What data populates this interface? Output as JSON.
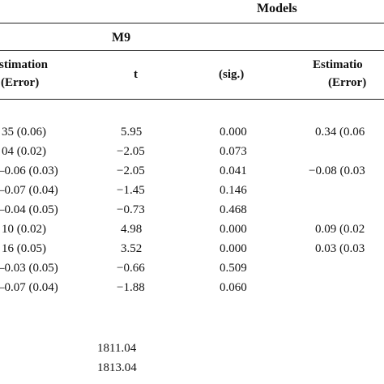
{
  "header": {
    "models": "Models",
    "m9": "M9"
  },
  "columns": {
    "estimation_left_line1": "stimation",
    "estimation_left_line2": "(Error)",
    "t": "t",
    "sig": "(sig.)",
    "estimation_right_line1": "Estimatio",
    "estimation_right_line2": "(Error)"
  },
  "rows": [
    {
      "est": "35 (0.06)",
      "t": "5.95",
      "sig": "0.000",
      "est2": "0.34 (0.06"
    },
    {
      "est": "04 (0.02)",
      "t": "−2.05",
      "sig": "0.073",
      "est2": ""
    },
    {
      "est": "–0.06 (0.03)",
      "t": "−2.05",
      "sig": "0.041",
      "est2": "−0.08 (0.03"
    },
    {
      "est": "–0.07 (0.04)",
      "t": "−1.45",
      "sig": "0.146",
      "est2": ""
    },
    {
      "est": "–0.04 (0.05)",
      "t": "−0.73",
      "sig": "0.468",
      "est2": ""
    },
    {
      "est": "10 (0.02)",
      "t": "4.98",
      "sig": "0.000",
      "est2": "0.09 (0.02"
    },
    {
      "est": "16 (0.05)",
      "t": "3.52",
      "sig": "0.000",
      "est2": "0.03 (0.03"
    },
    {
      "est": "–0.03 (0.05)",
      "t": "−0.66",
      "sig": "0.509",
      "est2": ""
    },
    {
      "est": "–0.07 (0.04)",
      "t": "−1.88",
      "sig": "0.060",
      "est2": ""
    }
  ],
  "footer": {
    "value1": "1811.04",
    "value2": "1813.04"
  }
}
